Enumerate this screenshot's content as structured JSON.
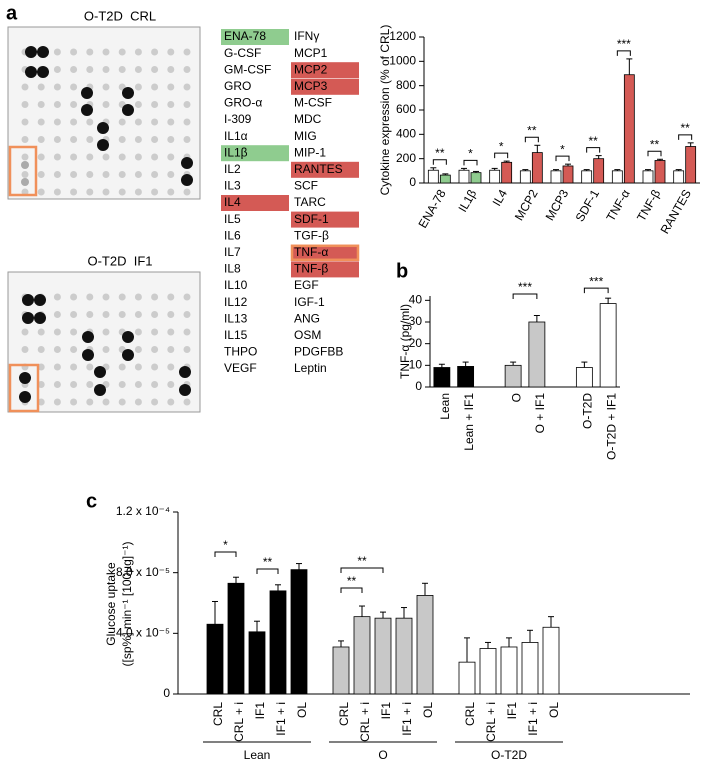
{
  "panel_labels": [
    "a",
    "b",
    "c"
  ],
  "blots": [
    {
      "title": "O-T2D  CRL"
    },
    {
      "title": "O-T2D  IF1"
    }
  ],
  "cytokine_array": {
    "columns": [
      [
        {
          "label": "ENA-78",
          "highlight": "#8fcc8f"
        },
        "G-CSF",
        "GM-CSF",
        "GRO",
        "GRO-α",
        "I-309",
        "IL1α",
        {
          "label": "IL1β",
          "highlight": "#8fcc8f"
        },
        "IL2",
        "IL3",
        {
          "label": "IL4",
          "highlight": "#d45a55"
        },
        "IL5",
        "IL6",
        "IL7",
        "IL8",
        "IL10",
        "IL12",
        "IL13",
        "IL15",
        "THPO",
        "VEGF"
      ],
      [
        "IFNγ",
        "MCP1",
        {
          "label": "MCP2",
          "highlight": "#d45a55"
        },
        {
          "label": "MCP3",
          "highlight": "#d45a55"
        },
        "M-CSF",
        "MDC",
        "MIG",
        "MIP-1",
        {
          "label": "RANTES",
          "highlight": "#d45a55"
        },
        "SCF",
        "TARC",
        {
          "label": "SDF-1",
          "highlight": "#d45a55"
        },
        "TGF-β",
        {
          "label": "TNF-α",
          "highlight": "#d45a55",
          "outline": "#f0905a"
        },
        {
          "label": "TNF-β",
          "highlight": "#d45a55"
        },
        "EGF",
        "IGF-1",
        "ANG",
        "OSM",
        "PDGFBB",
        "Leptin"
      ]
    ]
  },
  "chart_data": [
    {
      "type": "paired-bar",
      "ylabel": "Cytokine expression (% of CRL)",
      "categories": [
        "ENA-78",
        "IL1β",
        "IL4",
        "MCP2",
        "MCP3",
        "SDF-1",
        "TNF-α",
        "TNF-β",
        "RANTES"
      ],
      "series": [
        {
          "color": "#ffffff",
          "values": [
            105,
            105,
            105,
            100,
            100,
            100,
            100,
            100,
            100
          ],
          "errors": [
            20,
            15,
            15,
            10,
            10,
            10,
            10,
            10,
            10
          ]
        },
        {
          "colors": [
            "#8fcc8f",
            "#8fcc8f",
            "#d45a55",
            "#d45a55",
            "#d45a55",
            "#d45a55",
            "#d45a55",
            "#d45a55",
            "#d45a55"
          ],
          "values": [
            65,
            85,
            170,
            250,
            140,
            200,
            890,
            185,
            300
          ],
          "errors": [
            10,
            10,
            10,
            60,
            15,
            25,
            130,
            10,
            30
          ]
        }
      ],
      "annotations": [
        "**",
        "*",
        "*",
        "**",
        "*",
        "**",
        "***",
        "**",
        "**"
      ],
      "ylim": [
        0,
        1200
      ],
      "yticks": [
        0,
        200,
        400,
        600,
        800,
        1000,
        1200
      ]
    },
    {
      "type": "bar",
      "ylabel": "TNF-α (pg/ml)",
      "categories": [
        "Lean",
        "Lean + IF1",
        null,
        "O",
        "O + IF1",
        null,
        "O-T2D",
        "O-T2D + IF1"
      ],
      "values": [
        9,
        9.5,
        null,
        10,
        30,
        null,
        9,
        38.5
      ],
      "errors": [
        1.5,
        2,
        null,
        1.5,
        3,
        null,
        2.5,
        2.5
      ],
      "colors": [
        "#000000",
        "#000000",
        null,
        "#c8c8c8",
        "#c8c8c8",
        null,
        "#ffffff",
        "#ffffff"
      ],
      "annotations": [
        "***",
        "***"
      ],
      "ylim": [
        0,
        42
      ],
      "yticks": [
        0,
        10,
        20,
        30,
        40
      ]
    },
    {
      "type": "grouped-bar",
      "ylabel": [
        "Glucose uptake",
        "([sp%] min⁻¹ [100µg]⁻¹)"
      ],
      "categories": [
        "CRL",
        "CRL + i",
        "IF1",
        "IF1 + i",
        "OL"
      ],
      "groups": [
        {
          "name": "Lean",
          "color": "#000000",
          "values": [
            4.6e-05,
            7.3e-05,
            4.1e-05,
            6.8e-05,
            8.2e-05
          ],
          "errors": [
            1.5e-05,
            4e-06,
            7e-06,
            4e-06,
            4e-06
          ]
        },
        {
          "name": "O",
          "color": "#c8c8c8",
          "values": [
            3.1e-05,
            5.1e-05,
            5e-05,
            5e-05,
            6.5e-05
          ],
          "errors": [
            4e-06,
            7e-06,
            4e-06,
            7e-06,
            8e-06
          ]
        },
        {
          "name": "O-T2D",
          "color": "#ffffff",
          "values": [
            2.1e-05,
            3e-05,
            3.1e-05,
            3.4e-05,
            4.4e-05
          ],
          "errors": [
            1.6e-05,
            4e-06,
            6e-06,
            8e-06,
            7e-06
          ]
        }
      ],
      "annotations": [
        "*",
        "**",
        "**",
        "**"
      ],
      "ylim": [
        0,
        0.00012
      ],
      "yticks": [
        0,
        {
          "value": 4e-05,
          "label": "4.0 x 10⁻⁵"
        },
        {
          "value": 8e-05,
          "label": "8.0 x 10⁻⁵"
        },
        {
          "value": 0.00012,
          "label": "1.2 x 10⁻⁴"
        }
      ]
    }
  ]
}
